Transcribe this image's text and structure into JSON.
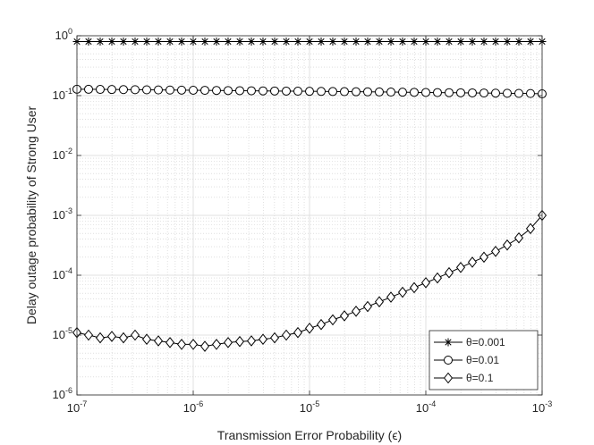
{
  "chart_data": {
    "type": "line",
    "title": "",
    "xlabel": "Transmission Error Probability (ϵ)",
    "ylabel": "Delay outage probability of Strong User",
    "xscale": "log",
    "yscale": "log",
    "xlim": [
      1e-07,
      0.001
    ],
    "ylim": [
      1e-06,
      1
    ],
    "grid": true,
    "minor_grid": true,
    "legend_position": "bottom-right",
    "x_ticks": [
      {
        "base": "10",
        "exp": "-7",
        "value": 1e-07
      },
      {
        "base": "10",
        "exp": "-6",
        "value": 1e-06
      },
      {
        "base": "10",
        "exp": "-5",
        "value": 1e-05
      },
      {
        "base": "10",
        "exp": "-4",
        "value": 0.0001
      },
      {
        "base": "10",
        "exp": "-3",
        "value": 0.001
      }
    ],
    "y_ticks": [
      {
        "base": "10",
        "exp": "0",
        "value": 1
      },
      {
        "base": "10",
        "exp": "-1",
        "value": 0.1
      },
      {
        "base": "10",
        "exp": "-2",
        "value": 0.01
      },
      {
        "base": "10",
        "exp": "-3",
        "value": 0.001
      },
      {
        "base": "10",
        "exp": "-4",
        "value": 0.0001
      },
      {
        "base": "10",
        "exp": "-5",
        "value": 1e-05
      },
      {
        "base": "10",
        "exp": "-6",
        "value": 1e-06
      }
    ],
    "x": [
      1e-07,
      1.259e-07,
      1.585e-07,
      1.995e-07,
      2.512e-07,
      3.162e-07,
      3.981e-07,
      5.012e-07,
      6.31e-07,
      7.943e-07,
      1e-06,
      1.259e-06,
      1.585e-06,
      1.995e-06,
      2.512e-06,
      3.162e-06,
      3.981e-06,
      5.012e-06,
      6.31e-06,
      7.943e-06,
      1e-05,
      1.259e-05,
      1.585e-05,
      1.995e-05,
      2.512e-05,
      3.162e-05,
      3.981e-05,
      5.012e-05,
      6.31e-05,
      7.943e-05,
      0.0001,
      0.0001259,
      0.0001585,
      0.0001995,
      0.0002512,
      0.0003162,
      0.0003981,
      0.0005012,
      0.000631,
      0.0007943,
      0.001
    ],
    "series": [
      {
        "name": "θ=0.001",
        "marker": "asterisk",
        "values": [
          0.8,
          0.8,
          0.8,
          0.8,
          0.8,
          0.8,
          0.8,
          0.8,
          0.8,
          0.8,
          0.8,
          0.8,
          0.8,
          0.8,
          0.8,
          0.8,
          0.8,
          0.8,
          0.8,
          0.8,
          0.8,
          0.8,
          0.8,
          0.8,
          0.8,
          0.8,
          0.8,
          0.8,
          0.8,
          0.8,
          0.8,
          0.8,
          0.8,
          0.8,
          0.8,
          0.8,
          0.8,
          0.8,
          0.8,
          0.8,
          0.8
        ]
      },
      {
        "name": "θ=0.01",
        "marker": "circle",
        "values": [
          0.128,
          0.1275,
          0.127,
          0.1265,
          0.126,
          0.1255,
          0.125,
          0.1245,
          0.124,
          0.1235,
          0.123,
          0.1225,
          0.122,
          0.1215,
          0.121,
          0.1205,
          0.12,
          0.1195,
          0.119,
          0.1185,
          0.118,
          0.1175,
          0.117,
          0.1165,
          0.116,
          0.1155,
          0.115,
          0.1145,
          0.114,
          0.1135,
          0.113,
          0.1125,
          0.112,
          0.1115,
          0.111,
          0.1105,
          0.11,
          0.1095,
          0.109,
          0.1085,
          0.107
        ]
      },
      {
        "name": "θ=0.1",
        "marker": "diamond",
        "values": [
          1.1e-05,
          1e-05,
          9e-06,
          9.5e-06,
          9e-06,
          1e-05,
          8.5e-06,
          8e-06,
          7.5e-06,
          7e-06,
          7e-06,
          6.5e-06,
          7e-06,
          7.5e-06,
          7.8e-06,
          8e-06,
          8.5e-06,
          9e-06,
          1e-05,
          1.1e-05,
          1.3e-05,
          1.5e-05,
          1.8e-05,
          2.1e-05,
          2.5e-05,
          3e-05,
          3.6e-05,
          4.3e-05,
          5.2e-05,
          6.2e-05,
          7.5e-05,
          9e-05,
          0.00011,
          0.000135,
          0.000165,
          0.0002,
          0.00025,
          0.00032,
          0.00042,
          0.0006,
          0.001
        ]
      }
    ]
  }
}
